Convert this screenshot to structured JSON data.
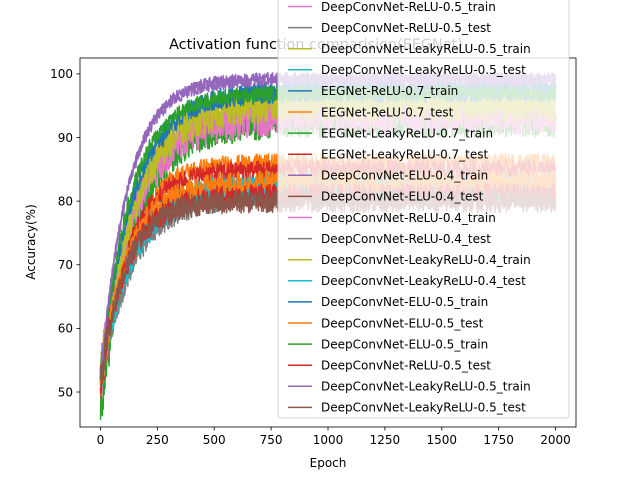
{
  "chart_data": {
    "type": "line",
    "title": "Activation function comparision(EEGNet)",
    "xlabel": "Epoch",
    "ylabel": "Accuracy(%)",
    "xlim": [
      -90,
      2090
    ],
    "ylim": [
      44.5,
      102.5
    ],
    "xticks": [
      0,
      250,
      500,
      750,
      1000,
      1250,
      1500,
      1750,
      2000
    ],
    "yticks": [
      50,
      60,
      70,
      80,
      90,
      100
    ],
    "grid": false,
    "legend_position": "top-right",
    "series": [
      {
        "name": "DeepConvNet-ReLU-0.5_train",
        "color": "#e377c2",
        "start": 52,
        "plateau": 94,
        "tau": 150,
        "noise": 2.5
      },
      {
        "name": "DeepConvNet-ReLU-0.5_test",
        "color": "#7f7f7f",
        "start": 51,
        "plateau": 81,
        "tau": 140,
        "noise": 2.0
      },
      {
        "name": "DeepConvNet-LeakyReLU-0.5_train",
        "color": "#bcbd22",
        "start": 52,
        "plateau": 95,
        "tau": 150,
        "noise": 2.5
      },
      {
        "name": "DeepConvNet-LeakyReLU-0.5_test",
        "color": "#17becf",
        "start": 52,
        "plateau": 83,
        "tau": 140,
        "noise": 2.0
      },
      {
        "name": "EEGNet-ReLU-0.7_train",
        "color": "#1f77b4",
        "start": 51,
        "plateau": 98,
        "tau": 160,
        "noise": 1.5
      },
      {
        "name": "EEGNet-ReLU-0.7_test",
        "color": "#ff7f0e",
        "start": 51,
        "plateau": 86,
        "tau": 120,
        "noise": 1.5
      },
      {
        "name": "EEGNet-LeakyReLU-0.7_train",
        "color": "#2ca02c",
        "start": 47,
        "plateau": 92,
        "tau": 150,
        "noise": 2.0
      },
      {
        "name": "EEGNet-LeakyReLU-0.7_test",
        "color": "#d62728",
        "start": 50,
        "plateau": 85,
        "tau": 120,
        "noise": 1.5
      },
      {
        "name": "DeepConvNet-ELU-0.4_train",
        "color": "#9467bd",
        "start": 52,
        "plateau": 99.5,
        "tau": 120,
        "noise": 0.8
      },
      {
        "name": "DeepConvNet-ELU-0.4_test",
        "color": "#8c564b",
        "start": 52,
        "plateau": 81,
        "tau": 110,
        "noise": 1.8
      },
      {
        "name": "DeepConvNet-ReLU-0.4_train",
        "color": "#e377c2",
        "start": 52,
        "plateau": 93,
        "tau": 150,
        "noise": 2.5
      },
      {
        "name": "DeepConvNet-ReLU-0.4_test",
        "color": "#7f7f7f",
        "start": 51,
        "plateau": 82,
        "tau": 140,
        "noise": 2.0
      },
      {
        "name": "DeepConvNet-LeakyReLU-0.4_train",
        "color": "#bcbd22",
        "start": 52,
        "plateau": 95,
        "tau": 150,
        "noise": 2.5
      },
      {
        "name": "DeepConvNet-LeakyReLU-0.4_test",
        "color": "#17becf",
        "start": 52,
        "plateau": 82,
        "tau": 140,
        "noise": 2.0
      },
      {
        "name": "DeepConvNet-ELU-0.5_train",
        "color": "#1f77b4",
        "start": 52,
        "plateau": 97,
        "tau": 140,
        "noise": 1.5
      },
      {
        "name": "DeepConvNet-ELU-0.5_test",
        "color": "#ff7f0e",
        "start": 52,
        "plateau": 83,
        "tau": 120,
        "noise": 1.8
      },
      {
        "name": "DeepConvNet-ELU-0.5_train",
        "color": "#2ca02c",
        "start": 52,
        "plateau": 97,
        "tau": 130,
        "noise": 1.2
      },
      {
        "name": "DeepConvNet-ReLU-0.5_test",
        "color": "#d62728",
        "start": 52,
        "plateau": 81,
        "tau": 120,
        "noise": 1.8
      },
      {
        "name": "DeepConvNet-LeakyReLU-0.5_train",
        "color": "#9467bd",
        "start": 52,
        "plateau": 99,
        "tau": 120,
        "noise": 0.9
      },
      {
        "name": "DeepConvNet-LeakyReLU-0.5_test",
        "color": "#8c564b",
        "start": 51,
        "plateau": 80,
        "tau": 110,
        "noise": 1.8
      }
    ]
  }
}
